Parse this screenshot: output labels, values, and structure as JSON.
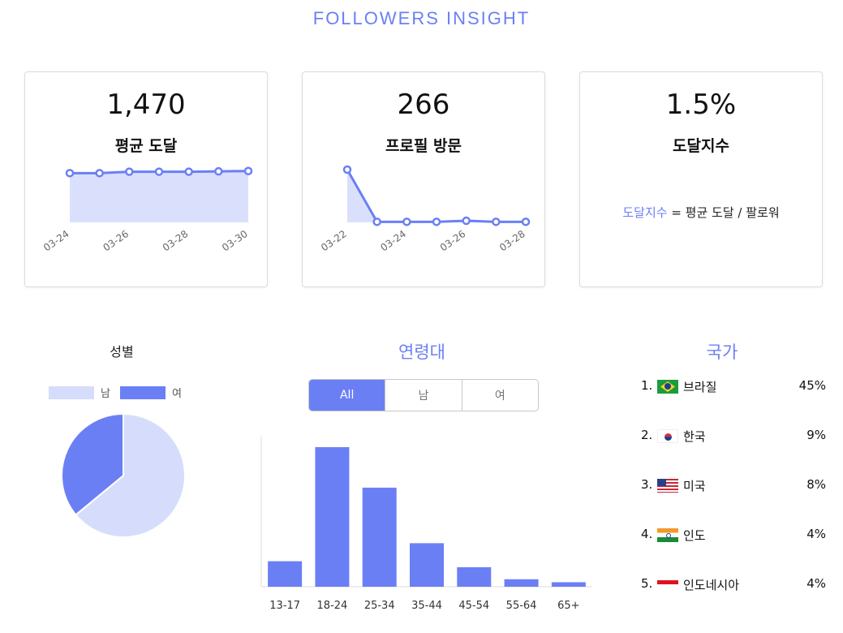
{
  "page": {
    "title": "FOLLOWERS INSIGHT"
  },
  "cards": [
    {
      "value": "1,470",
      "label": "평균 도달",
      "chart_data": {
        "type": "area",
        "x": [
          "03-24",
          "03-25",
          "03-26",
          "03-27",
          "03-28",
          "03-29",
          "03-30"
        ],
        "values": [
          1400,
          1400,
          1440,
          1440,
          1440,
          1450,
          1460
        ],
        "tick_labels": [
          "03-24",
          "03-26",
          "03-28",
          "03-30"
        ],
        "ylim": [
          0,
          1500
        ]
      }
    },
    {
      "value": "266",
      "label": "프로필 방문",
      "chart_data": {
        "type": "area",
        "x": [
          "03-22",
          "03-23",
          "03-24",
          "03-25",
          "03-26",
          "03-27",
          "03-28"
        ],
        "values": [
          1000,
          10,
          10,
          10,
          30,
          10,
          10
        ],
        "tick_labels": [
          "03-22",
          "03-24",
          "03-26",
          "03-28"
        ],
        "ylim": [
          0,
          1000
        ]
      }
    },
    {
      "value": "1.5%",
      "label": "도달지수",
      "formula": {
        "term": "도달지수",
        "equals": " = 평균 도달 / 팔로워"
      }
    }
  ],
  "gender": {
    "title": "성별",
    "legend": [
      {
        "label": "남",
        "color": "#d6ddfc"
      },
      {
        "label": "여",
        "color": "#6b7ff5"
      }
    ],
    "chart_data": {
      "type": "pie",
      "categories": [
        "남",
        "여"
      ],
      "values": [
        64,
        36
      ]
    }
  },
  "age": {
    "title": "연령대",
    "tabs": [
      "All",
      "남",
      "여"
    ],
    "active_tab": "All",
    "chart_data": {
      "type": "bar",
      "categories": [
        "13-17",
        "18-24",
        "25-34",
        "35-44",
        "45-54",
        "55-64",
        "65+"
      ],
      "values": [
        17,
        93,
        66,
        29,
        13,
        5,
        3
      ],
      "ylim": [
        0,
        100
      ]
    }
  },
  "country": {
    "title": "국가",
    "items": [
      {
        "rank": "1.",
        "flag": "brazil-flag",
        "name": "브라질",
        "pct": "45%"
      },
      {
        "rank": "2.",
        "flag": "korea-flag",
        "name": "한국",
        "pct": "9%"
      },
      {
        "rank": "3.",
        "flag": "usa-flag",
        "name": "미국",
        "pct": "8%"
      },
      {
        "rank": "4.",
        "flag": "india-flag",
        "name": "인도",
        "pct": "4%"
      },
      {
        "rank": "5.",
        "flag": "indonesia-flag",
        "name": "인도네시아",
        "pct": "4%"
      }
    ]
  },
  "colors": {
    "accent": "#6b7ff5",
    "light": "#d6ddfc"
  }
}
